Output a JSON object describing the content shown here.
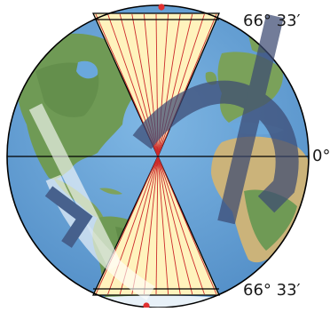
{
  "labels": {
    "north_latitude": "66° 33′",
    "equator": "0°",
    "south_latitude": "66° 33′"
  },
  "colors": {
    "ocean": "#5f9fd6",
    "land": "#6f9a55",
    "desert": "#cbb37a",
    "ice": "#e8f1f8",
    "sector_fill": "#fff3bd",
    "ray": "#cc2b2b",
    "pole_point": "#e03030",
    "watermark": "#3c4a73",
    "outline": "#000000"
  }
}
